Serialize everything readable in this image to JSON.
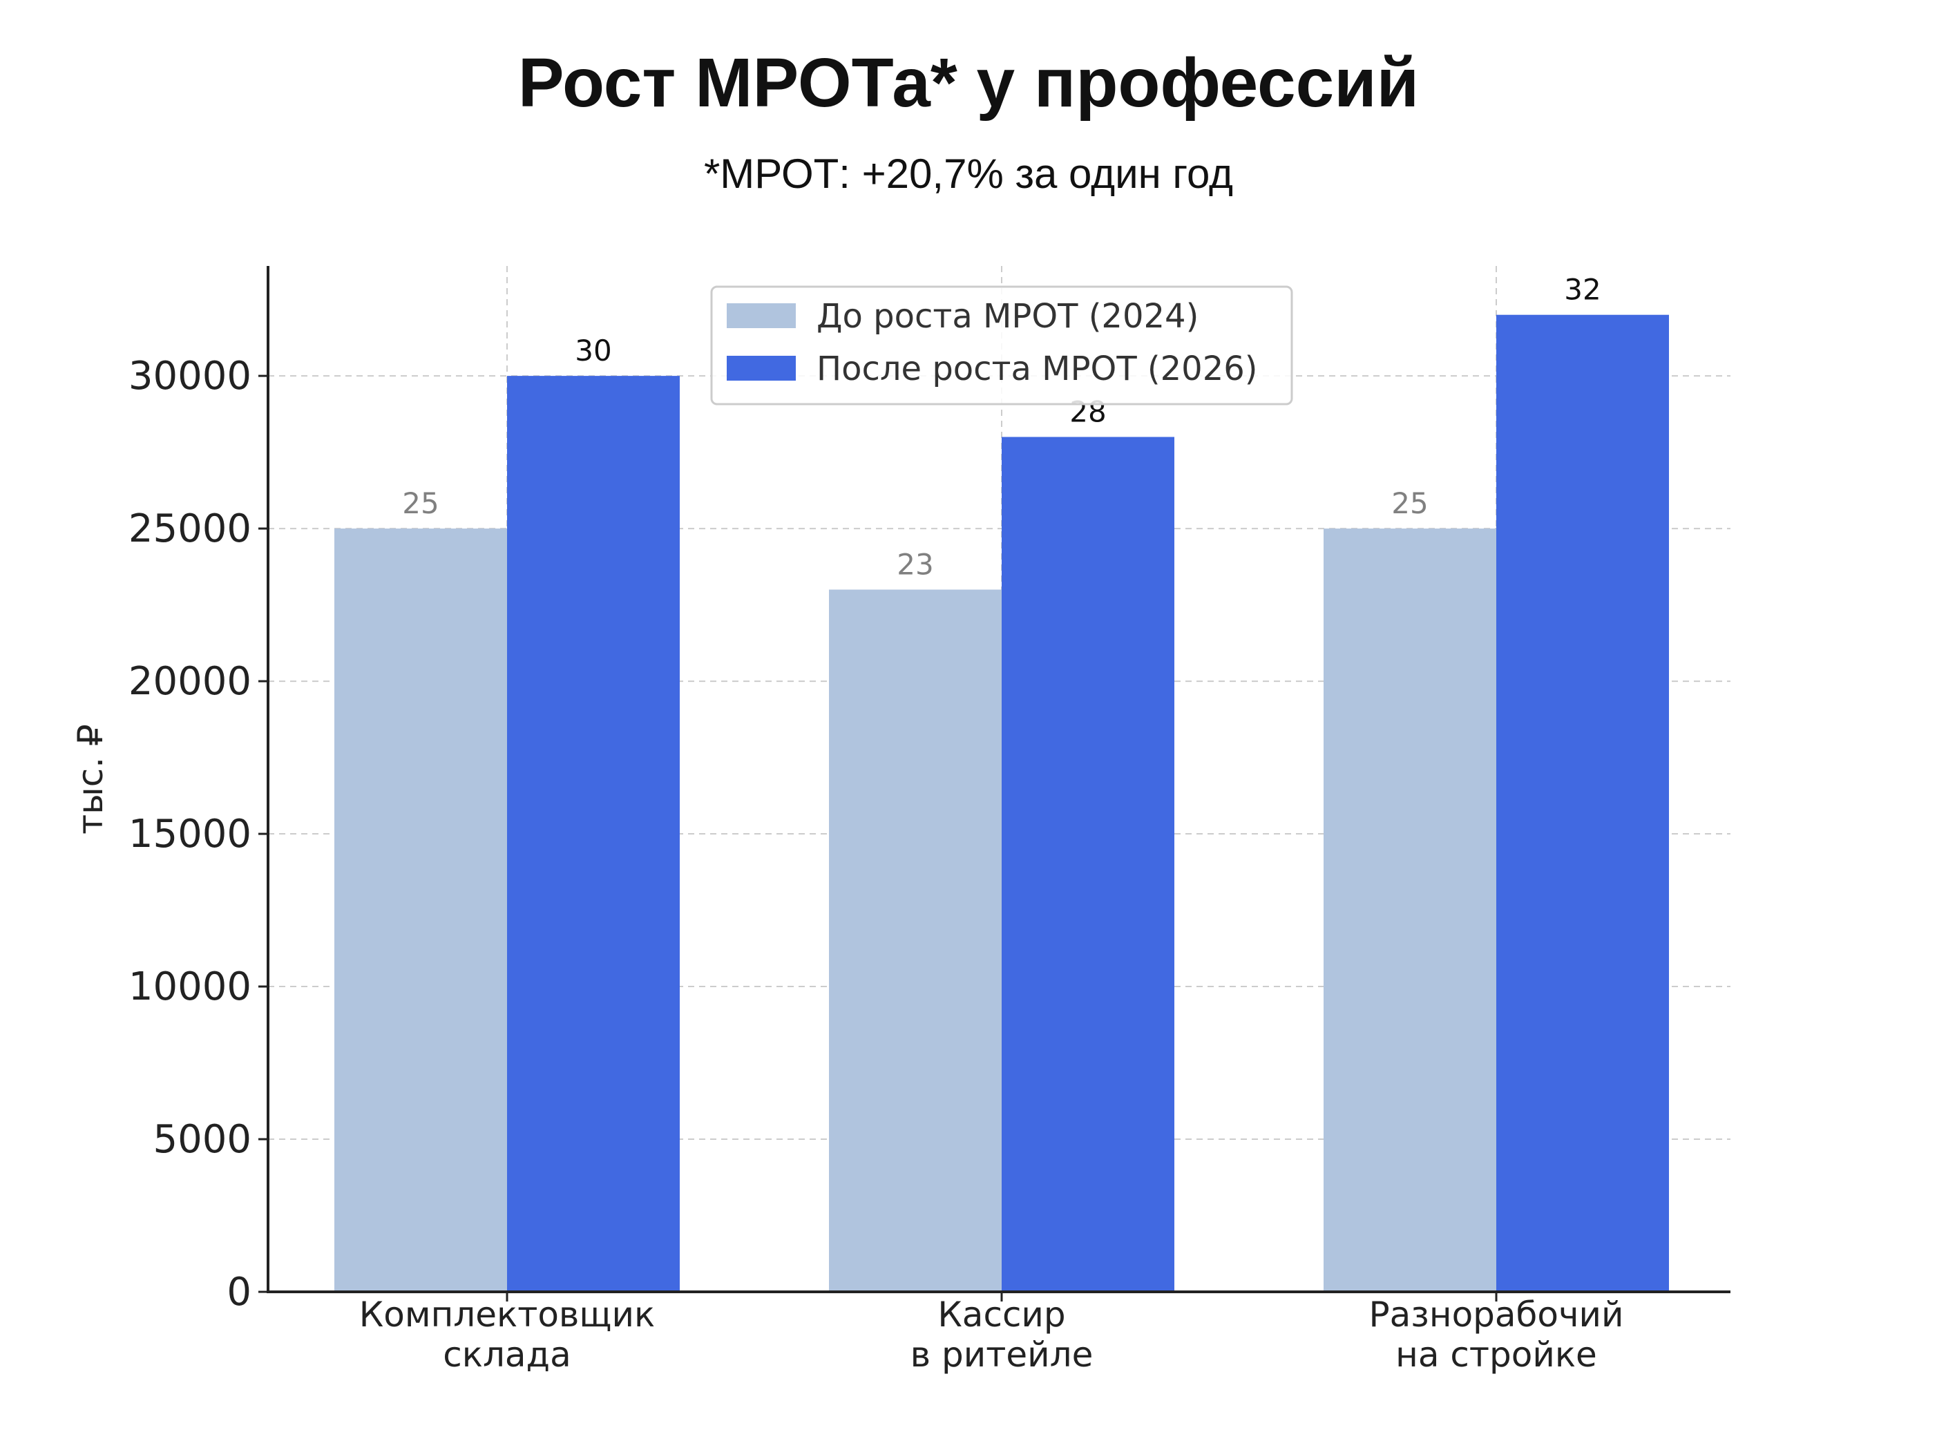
{
  "chart_data": {
    "type": "bar",
    "title": "Рост МРОТа* у профессий",
    "subtitle": "*МРОТ: +20,7% за один год",
    "ylabel": "тыс. ₽",
    "xlabel": "",
    "ylim": [
      0,
      33600
    ],
    "yticks": [
      0,
      5000,
      10000,
      15000,
      20000,
      25000,
      30000
    ],
    "ytick_labels": [
      "0",
      "5000",
      "10000",
      "15000",
      "20000",
      "25000",
      "30000"
    ],
    "categories": [
      [
        "Комплектовщик",
        "склада"
      ],
      [
        "Кассир",
        "в ритейле"
      ],
      [
        "Разнорабочий",
        "на стройке"
      ]
    ],
    "series": [
      {
        "name": "До роста МРОТ (2024)",
        "color": "#b0c4de",
        "label_color": "#808080",
        "values": [
          25000,
          23000,
          25000
        ],
        "labels": [
          "25",
          "23",
          "25"
        ]
      },
      {
        "name": "После роста МРОТ (2026)",
        "color": "#4169e1",
        "label_color": "#111111",
        "values": [
          30000,
          28000,
          32000
        ],
        "labels": [
          "30",
          "28",
          "32"
        ]
      }
    ],
    "grid": true,
    "legend_position": "top-center"
  }
}
